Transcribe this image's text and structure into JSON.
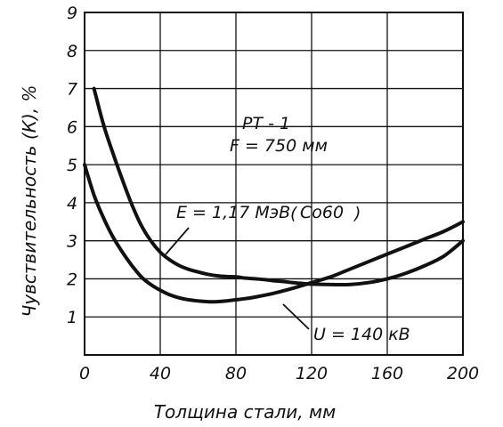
{
  "chart_data": {
    "type": "line",
    "title": "",
    "xlabel": "Толщина стали, мм",
    "ylabel": "Чувствительность (К), %",
    "xlim": [
      0,
      200
    ],
    "ylim": [
      0,
      9
    ],
    "x_ticks": [
      0,
      40,
      80,
      120,
      160,
      200
    ],
    "y_ticks": [
      1,
      2,
      3,
      4,
      5,
      6,
      7,
      8,
      9
    ],
    "grid": true,
    "series": [
      {
        "name": "E = 1,17 МэВ (Co60)",
        "x": [
          5,
          10,
          15,
          20,
          25,
          30,
          35,
          40,
          45,
          50,
          55,
          60,
          65,
          70,
          75,
          80,
          85,
          90,
          95,
          100,
          105,
          110,
          115,
          120,
          130,
          140,
          150,
          160,
          170,
          180,
          190,
          200
        ],
        "y": [
          7.0,
          6.05,
          5.3,
          4.6,
          3.95,
          3.4,
          3.0,
          2.7,
          2.5,
          2.35,
          2.25,
          2.18,
          2.12,
          2.08,
          2.06,
          2.05,
          2.02,
          2.0,
          1.98,
          1.95,
          1.93,
          1.9,
          1.88,
          1.86,
          1.85,
          1.85,
          1.9,
          2.0,
          2.15,
          2.35,
          2.6,
          3.0
        ]
      },
      {
        "name": "U = 140 кВ",
        "x": [
          0,
          5,
          10,
          15,
          20,
          25,
          30,
          35,
          40,
          45,
          50,
          55,
          60,
          65,
          70,
          75,
          80,
          85,
          90,
          100,
          110,
          120,
          130,
          140,
          150,
          160,
          170,
          180,
          190,
          200
        ],
        "y": [
          5.0,
          4.2,
          3.6,
          3.1,
          2.7,
          2.35,
          2.05,
          1.85,
          1.7,
          1.58,
          1.5,
          1.45,
          1.42,
          1.4,
          1.4,
          1.42,
          1.45,
          1.48,
          1.52,
          1.62,
          1.75,
          1.9,
          2.05,
          2.25,
          2.45,
          2.65,
          2.85,
          3.05,
          3.25,
          3.5
        ]
      }
    ],
    "annotations": [
      {
        "text": "РТ - 1",
        "x": 135,
        "y": 6.55
      },
      {
        "text": "F = 750 мм",
        "x": 125,
        "y": 5.9
      },
      {
        "text": "E = 1,17 МэВ",
        "x": 100,
        "y": 4.2
      },
      {
        "text": "Co60",
        "x": 165,
        "y": 4.2
      },
      {
        "text": "U = 140 кВ",
        "x": 175,
        "y": 1.05
      }
    ]
  }
}
